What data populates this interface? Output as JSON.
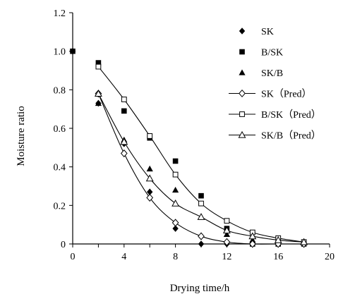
{
  "chart_data": {
    "type": "scatter",
    "xlabel": "Drying time/h",
    "ylabel": "Moisture ratio",
    "xlim": [
      0,
      20
    ],
    "ylim": [
      0,
      1.2
    ],
    "xticks": [
      "0",
      "2",
      "4",
      "6",
      "8",
      "10",
      "12",
      "14",
      "16",
      "18",
      "20"
    ],
    "yticks": [
      "0",
      "0.2",
      "0.4",
      "0.6",
      "0.8",
      "1.0",
      "1.2"
    ],
    "grid": false,
    "legend_position": "top-right",
    "series": [
      {
        "name": "SK",
        "kind": "markers",
        "marker": "diamond-filled",
        "x": [
          0,
          2,
          4,
          6,
          8,
          10,
          12,
          14,
          16,
          18
        ],
        "y": [
          1.0,
          0.73,
          0.52,
          0.27,
          0.08,
          0.0,
          0.0,
          0.0,
          0.0,
          0.0
        ]
      },
      {
        "name": "B/SK",
        "kind": "markers",
        "marker": "square-filled",
        "x": [
          0,
          2,
          4,
          6,
          8,
          10,
          12,
          14,
          16,
          18
        ],
        "y": [
          1.0,
          0.94,
          0.69,
          0.55,
          0.43,
          0.25,
          0.08,
          0.0,
          0.0,
          0.0
        ]
      },
      {
        "name": "SK/B",
        "kind": "markers",
        "marker": "triangle-filled",
        "x": [
          2,
          4,
          6,
          8,
          10,
          12,
          14,
          16,
          18
        ],
        "y": [
          0.73,
          0.54,
          0.39,
          0.28,
          0.14,
          0.05,
          0.02,
          0.01,
          0.01
        ]
      },
      {
        "name": "SK（Pred）",
        "kind": "line",
        "marker": "diamond-open",
        "x": [
          2,
          4,
          6,
          8,
          10,
          12,
          14,
          16,
          18
        ],
        "y": [
          0.78,
          0.47,
          0.24,
          0.11,
          0.04,
          0.01,
          0.0,
          0.0,
          0.0
        ]
      },
      {
        "name": "B/SK（Pred）",
        "kind": "line",
        "marker": "square-open",
        "x": [
          2,
          4,
          6,
          8,
          10,
          12,
          14,
          16,
          18
        ],
        "y": [
          0.92,
          0.75,
          0.56,
          0.36,
          0.21,
          0.12,
          0.06,
          0.03,
          0.01
        ]
      },
      {
        "name": "SK/B（Pred）",
        "kind": "line",
        "marker": "triangle-open",
        "x": [
          2,
          4,
          6,
          8,
          10,
          12,
          14,
          16,
          18
        ],
        "y": [
          0.78,
          0.53,
          0.34,
          0.21,
          0.14,
          0.07,
          0.04,
          0.02,
          0.01
        ]
      }
    ]
  }
}
